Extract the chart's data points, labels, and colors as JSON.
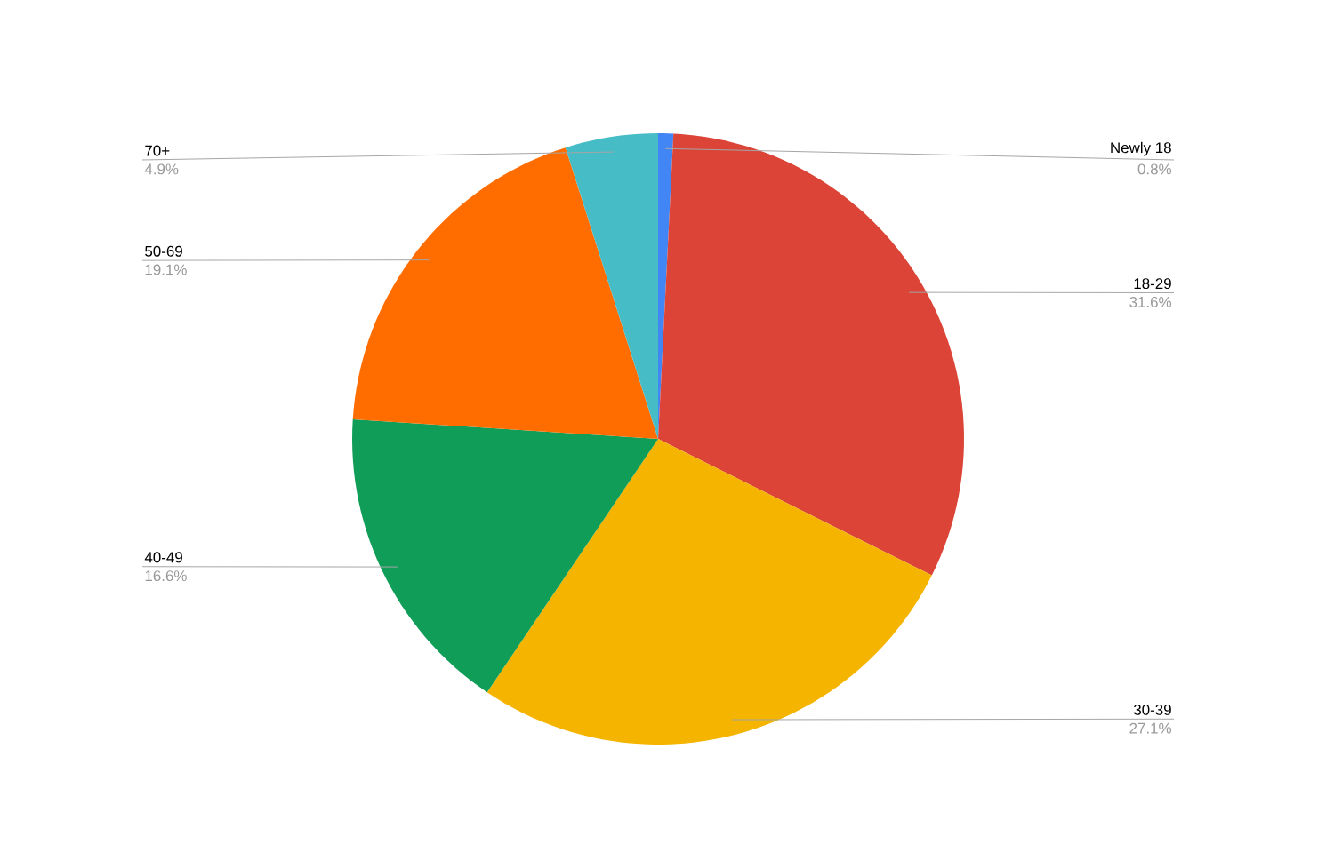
{
  "chart_data": {
    "type": "pie",
    "categories": [
      "Newly 18",
      "18-29",
      "30-39",
      "40-49",
      "50-69",
      "70+"
    ],
    "values": [
      0.8,
      31.6,
      27.1,
      16.6,
      19.1,
      4.9
    ],
    "colors": [
      "#4285f4",
      "#db4437",
      "#f4b400",
      "#0f9d58",
      "#ff6d00",
      "#46bdc6"
    ],
    "value_labels": [
      "0.8%",
      "31.6%",
      "27.1%",
      "16.6%",
      "19.1%",
      "4.9%"
    ]
  }
}
